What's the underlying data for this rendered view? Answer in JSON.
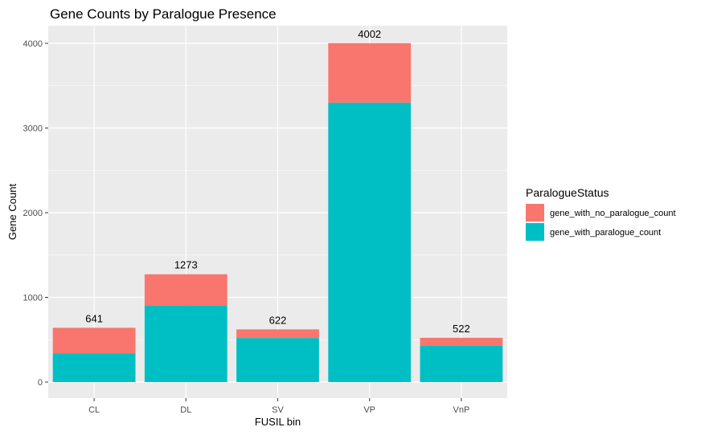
{
  "chart_data": {
    "type": "bar",
    "stacked": true,
    "title": "Gene Counts by Paralogue Presence",
    "xlabel": "FUSIL bin",
    "ylabel": "Gene Count",
    "categories": [
      "CL",
      "DL",
      "SV",
      "VP",
      "VnP"
    ],
    "ylim": [
      0,
      4200
    ],
    "yticks": [
      0,
      1000,
      2000,
      3000,
      4000
    ],
    "grid": true,
    "legend_position": "right",
    "legend_title": "ParalogueStatus",
    "series": [
      {
        "name": "gene_with_paralogue_count",
        "color": "#00BFC4",
        "values": [
          340,
          900,
          520,
          3300,
          430
        ]
      },
      {
        "name": "gene_with_no_paralogue_count",
        "color": "#F8766D",
        "values": [
          301,
          373,
          102,
          702,
          92
        ]
      }
    ],
    "totals": [
      641,
      1273,
      622,
      4002,
      522
    ]
  }
}
